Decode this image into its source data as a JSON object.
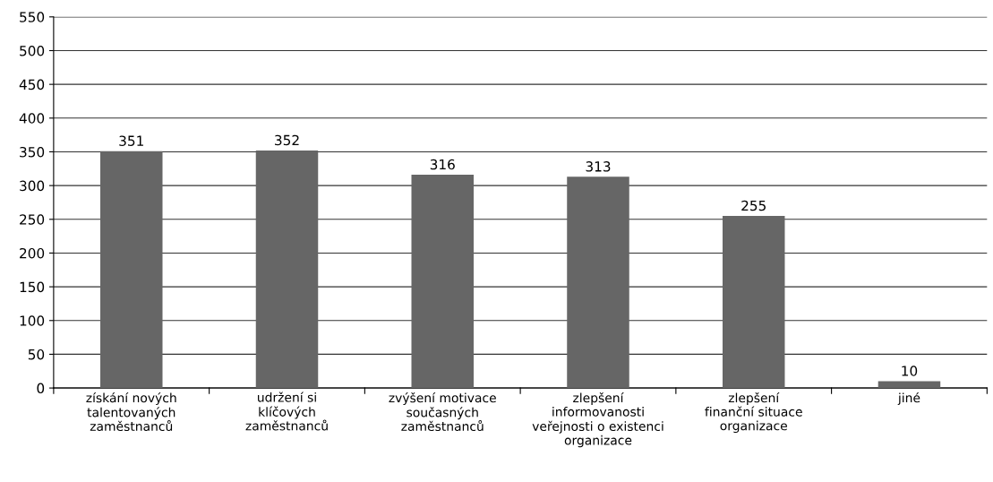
{
  "chart_data": {
    "type": "bar",
    "categories": [
      "získání nových\ntalentovaných\nzaměstnanců",
      "udržení si\nklíčových\nzaměstnanců",
      "zvýšení motivace\nsoučasných\nzaměstnanců",
      "zlepšení\ninformovanosti\nveřejnosti o existenci\norganizace",
      "zlepšení\nfinanční situace\norganizace",
      "jiné"
    ],
    "values": [
      351,
      352,
      316,
      313,
      255,
      10
    ],
    "color": "#666666",
    "ylim": [
      0,
      550
    ],
    "yticks": [
      0,
      50,
      100,
      150,
      200,
      250,
      300,
      350,
      400,
      450,
      500,
      550
    ],
    "grid": "y",
    "data_labels": true
  }
}
